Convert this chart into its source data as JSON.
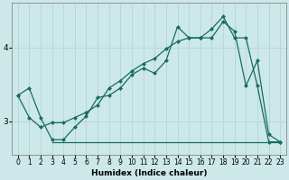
{
  "xlabel": "Humidex (Indice chaleur)",
  "bg_color": "#cce8e8",
  "grid_color": "#b8d8d8",
  "line_color": "#1a6b60",
  "xlim": [
    -0.5,
    23.5
  ],
  "ylim": [
    2.55,
    4.6
  ],
  "yticks": [
    3,
    4
  ],
  "xticks": [
    0,
    1,
    2,
    3,
    4,
    5,
    6,
    7,
    8,
    9,
    10,
    11,
    12,
    13,
    14,
    15,
    16,
    17,
    18,
    19,
    20,
    21,
    22,
    23
  ],
  "line1_x": [
    0,
    1,
    2,
    3,
    4,
    5,
    6,
    7,
    8,
    9,
    10,
    11,
    12,
    13,
    14,
    15,
    16,
    17,
    18,
    19,
    20,
    21,
    22,
    23
  ],
  "line1_y": [
    3.35,
    3.45,
    3.05,
    2.75,
    2.75,
    2.92,
    3.07,
    3.32,
    3.35,
    3.45,
    3.63,
    3.72,
    3.65,
    3.82,
    4.28,
    4.13,
    4.13,
    4.13,
    4.35,
    4.22,
    3.48,
    3.82,
    2.82,
    2.72
  ],
  "line2_x": [
    0,
    1,
    2,
    3,
    4,
    5,
    6,
    7,
    8,
    9,
    10,
    11,
    12,
    13,
    14,
    15,
    16,
    17,
    18,
    19,
    20,
    21,
    22,
    23
  ],
  "line2_y": [
    3.35,
    3.05,
    2.92,
    2.98,
    2.98,
    3.05,
    3.12,
    3.22,
    3.45,
    3.55,
    3.68,
    3.78,
    3.85,
    3.98,
    4.08,
    4.13,
    4.13,
    4.25,
    4.42,
    4.13,
    4.13,
    3.48,
    2.72,
    2.72
  ],
  "line3_x": [
    3,
    4,
    5,
    6,
    7,
    8,
    9,
    10,
    11,
    12,
    13,
    14,
    15,
    16,
    17,
    18,
    19,
    20,
    21,
    22,
    23
  ],
  "line3_y": [
    2.72,
    2.72,
    2.72,
    2.72,
    2.72,
    2.72,
    2.72,
    2.72,
    2.72,
    2.72,
    2.72,
    2.72,
    2.72,
    2.72,
    2.72,
    2.72,
    2.72,
    2.72,
    2.72,
    2.72,
    2.72
  ],
  "markersize": 2.5,
  "linewidth": 0.9
}
